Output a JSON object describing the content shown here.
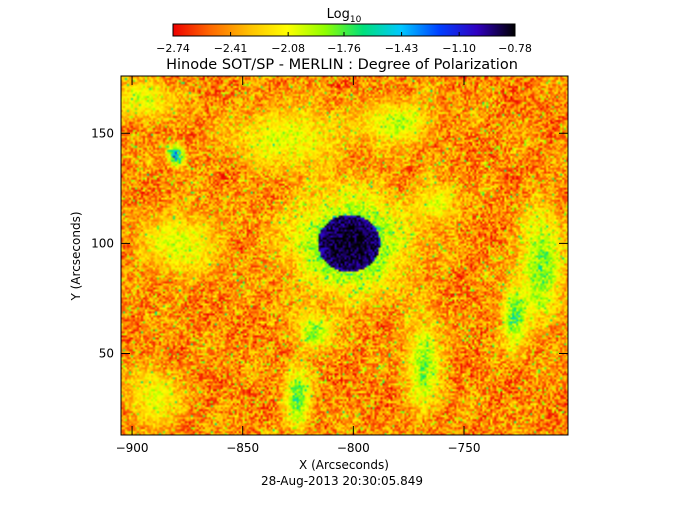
{
  "chart_data": {
    "type": "heatmap",
    "title": "Hinode SOT/SP - MERLIN : Degree of Polarization",
    "xlabel": "X (Arcseconds)",
    "ylabel": "Y (Arcseconds)",
    "xlim": [
      -905,
      -703
    ],
    "ylim": [
      13,
      176
    ],
    "x_ticks": [
      -900,
      -850,
      -800,
      -750
    ],
    "x_tick_labels": [
      "−900",
      "−850",
      "−800",
      "−750"
    ],
    "y_ticks": [
      50,
      100,
      150
    ],
    "y_tick_labels": [
      "50",
      "100",
      "150"
    ],
    "timestamp": "28-Aug-2013 20:30:05.849",
    "colorbar": {
      "label_main": "Log",
      "label_sub": "10",
      "range": [
        -2.74,
        -0.78
      ],
      "ticks": [
        -2.74,
        -2.41,
        -2.08,
        -1.76,
        -1.43,
        -1.1,
        -0.78
      ],
      "tick_labels": [
        "−2.74",
        "−2.41",
        "−2.08",
        "−1.76",
        "−1.43",
        "−1.10",
        "−0.78"
      ],
      "colormap": [
        "#ee0000",
        "#ff6a00",
        "#ffc000",
        "#ffff00",
        "#8fff00",
        "#00e07a",
        "#00c8ff",
        "#0040ff",
        "#3000c0",
        "#000000"
      ]
    },
    "features": [
      {
        "name": "sunspot",
        "x": -802,
        "y": 100,
        "rx": 14,
        "ry": 13,
        "level": -0.8
      },
      {
        "name": "plage",
        "x": -802,
        "y": 100,
        "rx": 27,
        "ry": 24,
        "level": -1.5
      },
      {
        "name": "network",
        "x": -880,
        "y": 140,
        "rx": 4,
        "ry": 5,
        "level": -1.2
      },
      {
        "name": "network",
        "x": -878,
        "y": 100,
        "rx": 18,
        "ry": 15,
        "level": -1.95
      },
      {
        "name": "network",
        "x": -895,
        "y": 165,
        "rx": 14,
        "ry": 9,
        "level": -1.95
      },
      {
        "name": "network",
        "x": -830,
        "y": 148,
        "rx": 26,
        "ry": 14,
        "level": -1.95
      },
      {
        "name": "network",
        "x": -780,
        "y": 155,
        "rx": 16,
        "ry": 10,
        "level": -1.85
      },
      {
        "name": "network",
        "x": -762,
        "y": 118,
        "rx": 10,
        "ry": 9,
        "level": -1.95
      },
      {
        "name": "network",
        "x": -715,
        "y": 90,
        "rx": 10,
        "ry": 26,
        "level": -1.7
      },
      {
        "name": "network",
        "x": -727,
        "y": 67,
        "rx": 6,
        "ry": 14,
        "level": -1.6
      },
      {
        "name": "network",
        "x": -768,
        "y": 45,
        "rx": 8,
        "ry": 22,
        "level": -1.75
      },
      {
        "name": "network",
        "x": -825,
        "y": 30,
        "rx": 6,
        "ry": 16,
        "level": -1.65
      },
      {
        "name": "network",
        "x": -890,
        "y": 30,
        "rx": 12,
        "ry": 14,
        "level": -2.0
      },
      {
        "name": "network",
        "x": -818,
        "y": 60,
        "rx": 8,
        "ry": 8,
        "level": -1.75
      }
    ]
  }
}
